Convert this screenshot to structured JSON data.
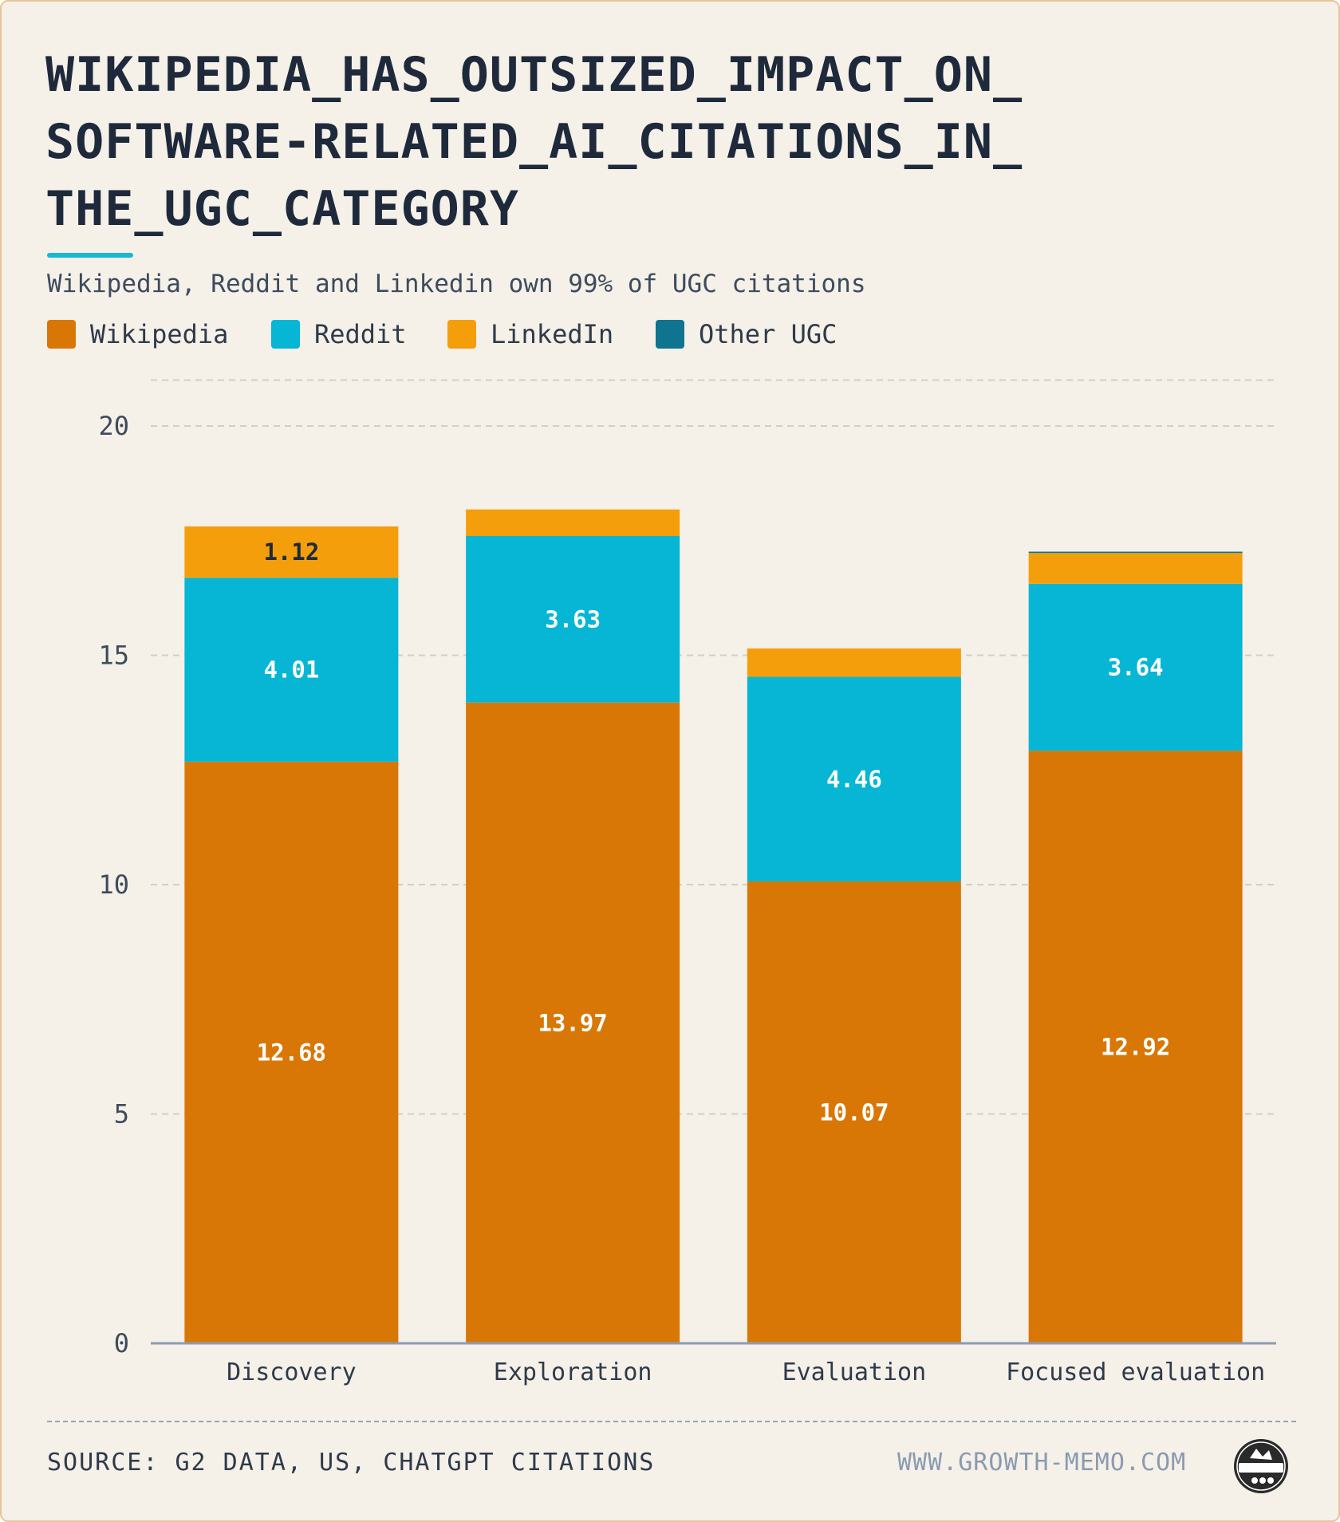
{
  "title_lines": [
    "WIKIPEDIA_HAS_OUTSIZED_IMPACT_ON_",
    "SOFTWARE-RELATED_AI_CITATIONS_IN_",
    "THE_UGC_CATEGORY"
  ],
  "subtitle": "Wikipedia, Reddit and Linkedin own 99% of UGC citations",
  "legend": [
    {
      "label": "Wikipedia",
      "color": "#d97706"
    },
    {
      "label": "Reddit",
      "color": "#06b6d4"
    },
    {
      "label": "LinkedIn",
      "color": "#f59e0b"
    },
    {
      "label": "Other UGC",
      "color": "#0e7490"
    }
  ],
  "footer": {
    "source": "SOURCE: G2 DATA, US, CHATGPT CITATIONS",
    "website": "WWW.GROWTH-MEMO.COM",
    "logo_text": "GROWTH MEMO"
  },
  "chart_data": {
    "type": "bar",
    "stacked": true,
    "categories": [
      "Discovery",
      "Exploration",
      "Evaluation",
      "Focused evaluation"
    ],
    "series": [
      {
        "name": "Wikipedia",
        "color": "#d97706",
        "values": [
          12.68,
          13.97,
          10.07,
          12.92
        ],
        "labels": [
          "12.68",
          "13.97",
          "10.07",
          "12.92"
        ]
      },
      {
        "name": "Reddit",
        "color": "#06b6d4",
        "values": [
          4.01,
          3.63,
          4.46,
          3.64
        ],
        "labels": [
          "4.01",
          "3.63",
          "4.46",
          "3.64"
        ]
      },
      {
        "name": "LinkedIn",
        "color": "#f59e0b",
        "values": [
          1.12,
          0.58,
          0.62,
          0.67
        ],
        "labels": [
          "1.12",
          "",
          "",
          ""
        ]
      },
      {
        "name": "Other UGC",
        "color": "#0e7490",
        "values": [
          0.0,
          0.0,
          0.0,
          0.03
        ],
        "labels": [
          "",
          "",
          "",
          ""
        ]
      }
    ],
    "yticks": [
      0,
      5,
      10,
      15,
      20
    ],
    "ylim": [
      0,
      21
    ],
    "grid": true,
    "legend_position": "top-left"
  }
}
